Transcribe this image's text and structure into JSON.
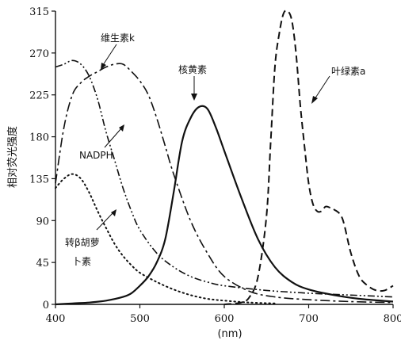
{
  "chart_data": {
    "type": "line",
    "xlabel": "(nm)",
    "ylabel": "相对荧光强度",
    "xlim": [
      400,
      800
    ],
    "ylim": [
      0,
      315
    ],
    "x_ticks": [
      400,
      500,
      600,
      700,
      800
    ],
    "y_ticks": [
      0,
      45,
      90,
      135,
      180,
      225,
      270,
      315
    ],
    "grid": false,
    "series": [
      {
        "name": "维生素k",
        "style": "long-dash-dot",
        "x": [
          400,
          410,
          420,
          430,
          440,
          450,
          460,
          470,
          480,
          490,
          500,
          510,
          520,
          530,
          540,
          560,
          580,
          600,
          630,
          660,
          700,
          750,
          800
        ],
        "y": [
          130,
          190,
          225,
          238,
          245,
          250,
          255,
          258,
          258,
          250,
          240,
          225,
          200,
          170,
          140,
          90,
          55,
          30,
          14,
          8,
          5,
          3,
          2
        ]
      },
      {
        "name": "NADPH",
        "style": "dash-double-dot",
        "x": [
          400,
          410,
          420,
          430,
          440,
          450,
          460,
          470,
          480,
          490,
          500,
          520,
          540,
          560,
          580,
          600,
          650,
          700,
          750,
          800
        ],
        "y": [
          255,
          258,
          262,
          258,
          245,
          220,
          185,
          155,
          125,
          100,
          80,
          55,
          40,
          30,
          24,
          20,
          15,
          12,
          10,
          8
        ]
      },
      {
        "name": "核黄素",
        "style": "solid",
        "x": [
          400,
          420,
          440,
          460,
          480,
          490,
          500,
          510,
          520,
          530,
          540,
          550,
          560,
          570,
          580,
          590,
          600,
          620,
          640,
          660,
          680,
          700,
          730,
          760,
          800
        ],
        "y": [
          0,
          1,
          2,
          4,
          8,
          12,
          20,
          30,
          45,
          70,
          120,
          175,
          200,
          212,
          210,
          190,
          165,
          115,
          70,
          40,
          24,
          16,
          10,
          6,
          3
        ]
      },
      {
        "name": "叶绿素a",
        "style": "dashed",
        "x": [
          600,
          620,
          630,
          640,
          650,
          655,
          660,
          665,
          670,
          675,
          680,
          685,
          690,
          695,
          700,
          705,
          710,
          715,
          720,
          725,
          730,
          740,
          750,
          760,
          770,
          780,
          790,
          800
        ],
        "y": [
          0,
          2,
          8,
          30,
          95,
          175,
          255,
          290,
          312,
          315,
          305,
          270,
          215,
          170,
          130,
          108,
          100,
          100,
          105,
          104,
          102,
          92,
          55,
          30,
          20,
          15,
          15,
          20
        ]
      },
      {
        "name": "转β胡萝卜素",
        "style": "dotted",
        "x": [
          400,
          410,
          420,
          430,
          440,
          450,
          460,
          470,
          480,
          490,
          500,
          520,
          540,
          560,
          580,
          600,
          630,
          660
        ],
        "y": [
          125,
          135,
          140,
          135,
          120,
          100,
          82,
          65,
          52,
          42,
          34,
          24,
          16,
          10,
          6,
          4,
          2,
          1
        ]
      }
    ],
    "annotations": [
      {
        "text": "维生素k"
      },
      {
        "text": "核黄素"
      },
      {
        "text": "叶绿素a"
      },
      {
        "text": "NADPH"
      },
      {
        "text": "转β胡萝"
      },
      {
        "text": "卜素"
      }
    ]
  }
}
